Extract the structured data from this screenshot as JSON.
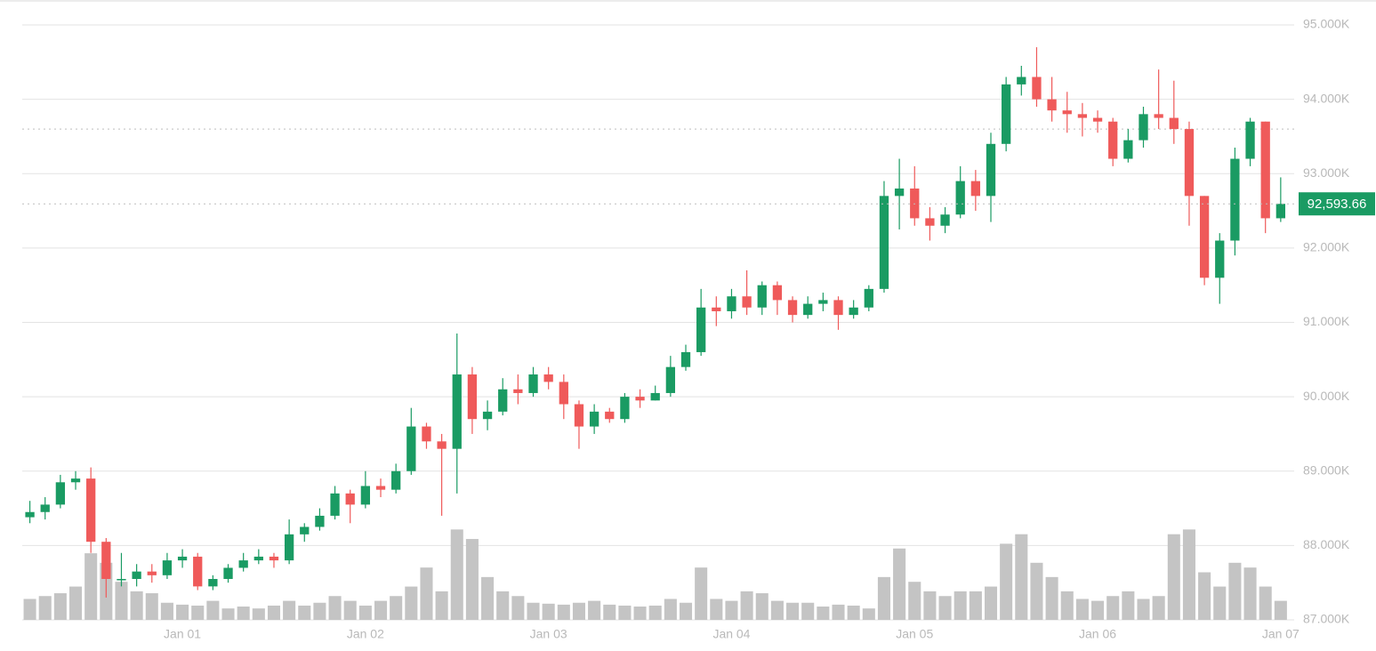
{
  "chart_data": {
    "type": "candlestick",
    "x": [
      -20,
      -18,
      -16,
      -14,
      -12,
      -10,
      -8,
      -6,
      -4,
      -2,
      0,
      2,
      4,
      6,
      8,
      10,
      12,
      14,
      16,
      18,
      20,
      22,
      24,
      26,
      28,
      30,
      32,
      34,
      36,
      38,
      40,
      42,
      44,
      46,
      48,
      50,
      52,
      54,
      56,
      58,
      60,
      62,
      64,
      66,
      68,
      70,
      72,
      74,
      76,
      78,
      80,
      82,
      84,
      86,
      88,
      90,
      92,
      94,
      96,
      98,
      100,
      102,
      104,
      106,
      108,
      110,
      112,
      114,
      116,
      118,
      120,
      122,
      124,
      126,
      128,
      130,
      132,
      134,
      136,
      138,
      140,
      142,
      144
    ],
    "open": [
      88380,
      88450,
      88550,
      88850,
      88900,
      88050,
      87550,
      87550,
      87650,
      87600,
      87800,
      87850,
      87450,
      87550,
      87700,
      87800,
      87850,
      87800,
      88150,
      88250,
      88400,
      88700,
      88550,
      88800,
      88750,
      89000,
      89600,
      89400,
      89300,
      90300,
      89700,
      89800,
      90100,
      90050,
      90300,
      90200,
      89900,
      89600,
      89800,
      89700,
      90000,
      89950,
      90050,
      90400,
      90600,
      91200,
      91150,
      91350,
      91200,
      91500,
      91300,
      91100,
      91250,
      91300,
      91100,
      91200,
      91450,
      92700,
      92800,
      92400,
      92300,
      92450,
      92900,
      92700,
      93400,
      94200,
      94300,
      94000,
      93850,
      93800,
      93750,
      93700,
      93200,
      93450,
      93800,
      93750,
      93600,
      92700,
      91600,
      92100,
      93200,
      93700,
      92400
    ],
    "high": [
      88600,
      88650,
      88950,
      89000,
      89050,
      88100,
      87900,
      87750,
      87750,
      87900,
      87950,
      87900,
      87600,
      87750,
      87900,
      87950,
      87900,
      88350,
      88300,
      88500,
      88800,
      88750,
      89000,
      88900,
      89100,
      89850,
      89650,
      89500,
      90850,
      90400,
      89950,
      90250,
      90300,
      90400,
      90400,
      90300,
      89950,
      89900,
      89850,
      90050,
      90100,
      90150,
      90550,
      90700,
      91450,
      91350,
      91450,
      91700,
      91550,
      91550,
      91350,
      91350,
      91400,
      91350,
      91300,
      91500,
      92900,
      93200,
      93100,
      92550,
      92550,
      93100,
      93050,
      93550,
      94300,
      94450,
      94700,
      94300,
      94100,
      93950,
      93850,
      93750,
      93600,
      93900,
      94400,
      94250,
      93700,
      92700,
      92200,
      93350,
      93750,
      93700,
      92950
    ],
    "low": [
      88300,
      88350,
      88500,
      88750,
      87900,
      87300,
      87450,
      87450,
      87500,
      87550,
      87700,
      87400,
      87400,
      87500,
      87650,
      87750,
      87700,
      87750,
      88050,
      88200,
      88350,
      88300,
      88500,
      88650,
      88700,
      88950,
      89300,
      88400,
      88700,
      89500,
      89550,
      89750,
      89900,
      90000,
      90100,
      89700,
      89300,
      89500,
      89650,
      89650,
      89850,
      89950,
      90000,
      90350,
      90550,
      90950,
      91050,
      91100,
      91100,
      91100,
      91000,
      91050,
      91150,
      90900,
      91050,
      91150,
      91400,
      92250,
      92300,
      92100,
      92200,
      92400,
      92500,
      92350,
      93300,
      94050,
      93900,
      93700,
      93550,
      93500,
      93550,
      93100,
      93150,
      93350,
      93600,
      93400,
      92300,
      91500,
      91250,
      91900,
      93100,
      92200,
      92350
    ],
    "close": [
      88450,
      88550,
      88850,
      88900,
      88050,
      87550,
      87550,
      87650,
      87600,
      87800,
      87850,
      87450,
      87550,
      87700,
      87800,
      87850,
      87800,
      88150,
      88250,
      88400,
      88700,
      88550,
      88800,
      88750,
      89000,
      89600,
      89400,
      89300,
      90300,
      89700,
      89800,
      90100,
      90050,
      90300,
      90200,
      89900,
      89600,
      89800,
      89700,
      90000,
      89950,
      90050,
      90400,
      90600,
      91200,
      91150,
      91350,
      91200,
      91500,
      91300,
      91100,
      91250,
      91300,
      91100,
      91200,
      91450,
      92700,
      92800,
      92400,
      92300,
      92450,
      92900,
      92700,
      93400,
      94200,
      94300,
      94000,
      93850,
      93800,
      93750,
      93700,
      93200,
      93450,
      93800,
      93750,
      93600,
      92700,
      91600,
      92100,
      93200,
      93700,
      92400,
      92593.66
    ],
    "volume": [
      22,
      25,
      28,
      35,
      70,
      60,
      40,
      30,
      28,
      18,
      16,
      15,
      20,
      12,
      14,
      12,
      15,
      20,
      15,
      18,
      25,
      20,
      15,
      20,
      25,
      35,
      55,
      30,
      95,
      85,
      45,
      30,
      25,
      18,
      17,
      16,
      18,
      20,
      16,
      15,
      14,
      15,
      22,
      18,
      55,
      22,
      20,
      30,
      28,
      20,
      18,
      18,
      14,
      16,
      15,
      12,
      45,
      75,
      40,
      30,
      25,
      30,
      30,
      35,
      80,
      90,
      60,
      45,
      30,
      22,
      20,
      25,
      30,
      22,
      25,
      90,
      95,
      50,
      35,
      60,
      55,
      35,
      20
    ],
    "up_color": "#1a9b63",
    "down_color": "#ef5a5a",
    "volume_color": "#c4c4c4",
    "xlim": [
      -21,
      146
    ],
    "xticks": [
      {
        "value": 0,
        "label": "Jan 01"
      },
      {
        "value": 24,
        "label": "Jan 02"
      },
      {
        "value": 48,
        "label": "Jan 03"
      },
      {
        "value": 72,
        "label": "Jan 04"
      },
      {
        "value": 96,
        "label": "Jan 05"
      },
      {
        "value": 120,
        "label": "Jan 06"
      },
      {
        "value": 144,
        "label": "Jan 07"
      }
    ],
    "ylim": [
      87000,
      95000
    ],
    "yticks": [
      {
        "value": 87000,
        "label": "87.000K"
      },
      {
        "value": 88000,
        "label": "88.000K"
      },
      {
        "value": 89000,
        "label": "89.000K"
      },
      {
        "value": 90000,
        "label": "90.000K"
      },
      {
        "value": 91000,
        "label": "91.000K"
      },
      {
        "value": 92000,
        "label": "92.000K"
      },
      {
        "value": 93000,
        "label": "93.000K"
      },
      {
        "value": 94000,
        "label": "94.000K"
      },
      {
        "value": 95000,
        "label": "95.000K"
      }
    ],
    "vlim": [
      0,
      100
    ],
    "reference_lines": [
      93600
    ],
    "last_price": {
      "value": 92593.66,
      "label": "92,593.66"
    },
    "grid": true
  }
}
